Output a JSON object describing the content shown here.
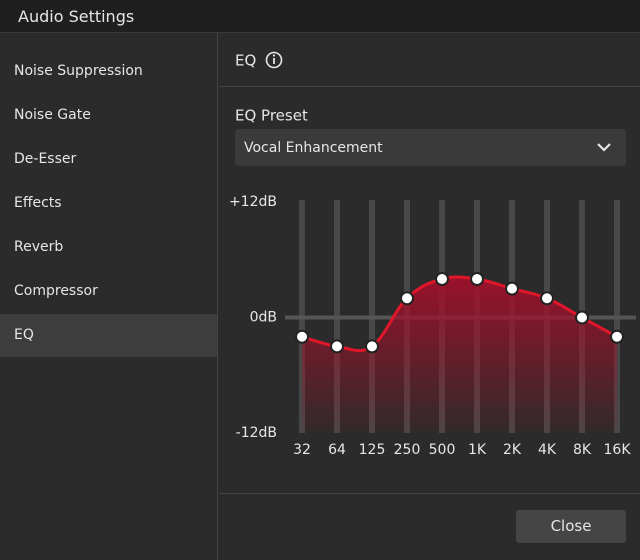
{
  "window": {
    "title": "Audio Settings"
  },
  "sidebar": {
    "items": [
      "Noise Suppression",
      "Noise Gate",
      "De-Esser",
      "Effects",
      "Reverb",
      "Compressor",
      "EQ"
    ],
    "selected_index": 6
  },
  "panel": {
    "title": "EQ",
    "preset_label": "EQ Preset",
    "preset_value": "Vocal Enhancement"
  },
  "chart_data": {
    "type": "line",
    "categories": [
      "32",
      "64",
      "125",
      "250",
      "500",
      "1K",
      "2K",
      "4K",
      "8K",
      "16K"
    ],
    "values": [
      -2,
      -3,
      -3,
      2,
      4,
      4,
      3,
      2,
      0,
      -2
    ],
    "color": "#e0162b",
    "ylim": [
      -12,
      12
    ],
    "yticks": [
      {
        "value": -12,
        "label": "-12dB"
      },
      {
        "value": 0,
        "label": "0dB"
      },
      {
        "value": 12,
        "label": "+12dB"
      }
    ]
  },
  "footer": {
    "close": "Close"
  }
}
